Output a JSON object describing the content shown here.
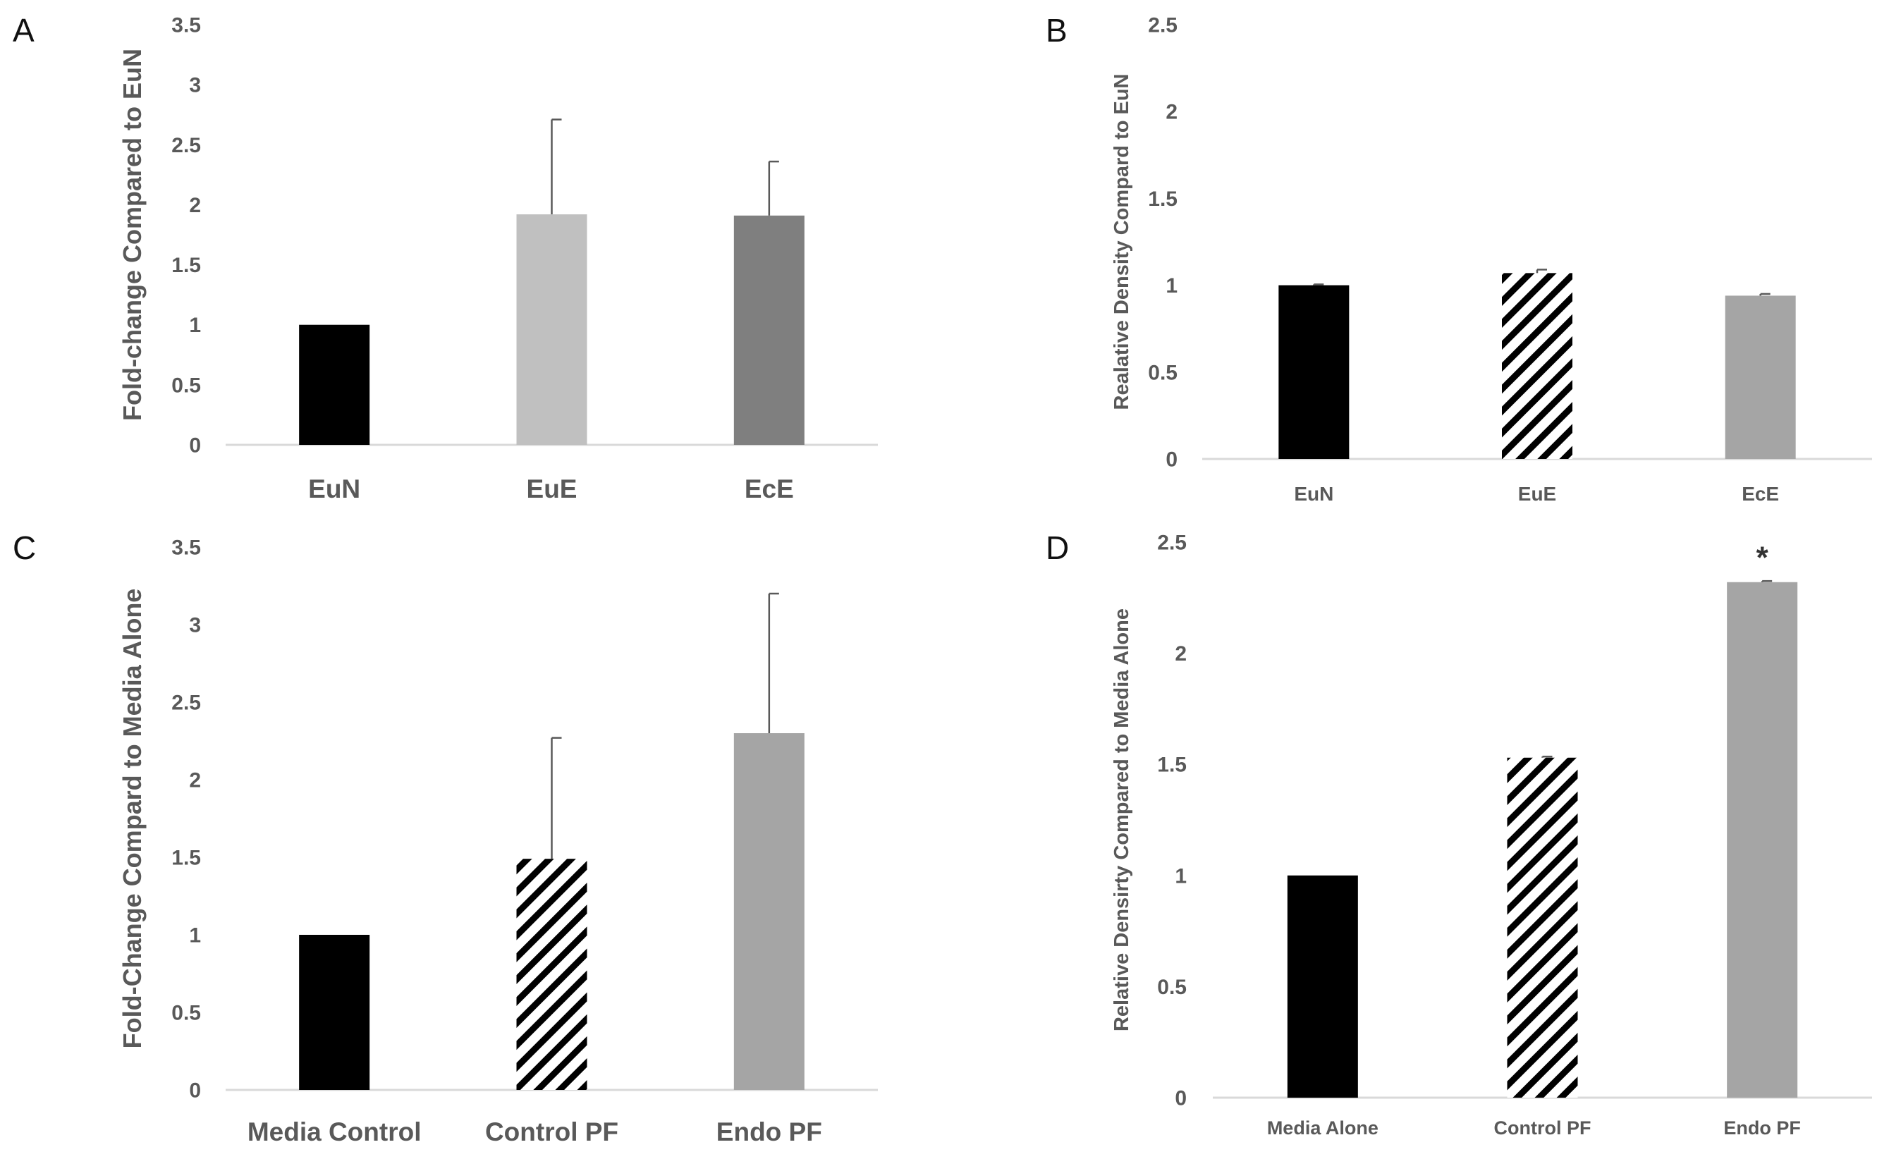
{
  "colors": {
    "black": "#000000",
    "light_gray": "#c0c0c0",
    "dark_gray": "#7f7f7f",
    "mid_gray": "#a5a5a5",
    "axis_line": "#d9d9d9",
    "error_bar": "#595959",
    "tick_text": "#595959"
  },
  "chart_data": [
    {
      "panel": "A",
      "type": "bar",
      "title": "",
      "xlabel": "",
      "ylabel": "Fold-change Compared to EuN",
      "ylim": [
        0,
        3.5
      ],
      "yticks": [
        "0",
        "0.5",
        "1",
        "1.5",
        "2",
        "2.5",
        "3",
        "3.5"
      ],
      "categories": [
        "EuN",
        "EuE",
        "EcE"
      ],
      "values": [
        1.0,
        1.92,
        1.91
      ],
      "errors": [
        0,
        0.79,
        0.45
      ],
      "fills": [
        "black",
        "light_gray",
        "dark_gray"
      ],
      "annotations": [
        "",
        "",
        ""
      ]
    },
    {
      "panel": "B",
      "type": "bar",
      "title": "",
      "xlabel": "",
      "ylabel": "Realative Density Compard to EuN",
      "ylim": [
        0,
        2.5
      ],
      "yticks": [
        "0",
        "0.5",
        "1",
        "1.5",
        "2",
        "2.5"
      ],
      "categories": [
        "EuN",
        "EuE",
        "EcE"
      ],
      "values": [
        1.0,
        1.07,
        0.94
      ],
      "errors": [
        0.005,
        0.02,
        0.01
      ],
      "fills": [
        "black",
        "hatch",
        "mid_gray"
      ],
      "annotations": [
        "",
        "",
        ""
      ]
    },
    {
      "panel": "C",
      "type": "bar",
      "title": "",
      "xlabel": "",
      "ylabel": "Fold-Change Compard to Media Alone",
      "ylim": [
        0,
        3.5
      ],
      "yticks": [
        "0",
        "0.5",
        "1",
        "1.5",
        "2",
        "2.5",
        "3",
        "3.5"
      ],
      "categories": [
        "Media Control",
        "Control PF",
        "Endo PF"
      ],
      "values": [
        1.0,
        1.49,
        2.3
      ],
      "errors": [
        0,
        0.78,
        0.9
      ],
      "fills": [
        "black",
        "hatch",
        "mid_gray"
      ],
      "annotations": [
        "",
        "",
        ""
      ]
    },
    {
      "panel": "D",
      "type": "bar",
      "title": "",
      "xlabel": "",
      "ylabel": "Relative Densirty Compared to Media Alone",
      "ylim": [
        0,
        2.5
      ],
      "yticks": [
        "0",
        "0.5",
        "1",
        "1.5",
        "2",
        "2.5"
      ],
      "categories": [
        "Media Alone",
        "Control PF",
        "Endo PF"
      ],
      "values": [
        1.0,
        1.53,
        2.32
      ],
      "errors": [
        0,
        0.005,
        0.005
      ],
      "fills": [
        "black",
        "hatch",
        "mid_gray"
      ],
      "annotations": [
        "",
        "",
        "*"
      ]
    }
  ]
}
